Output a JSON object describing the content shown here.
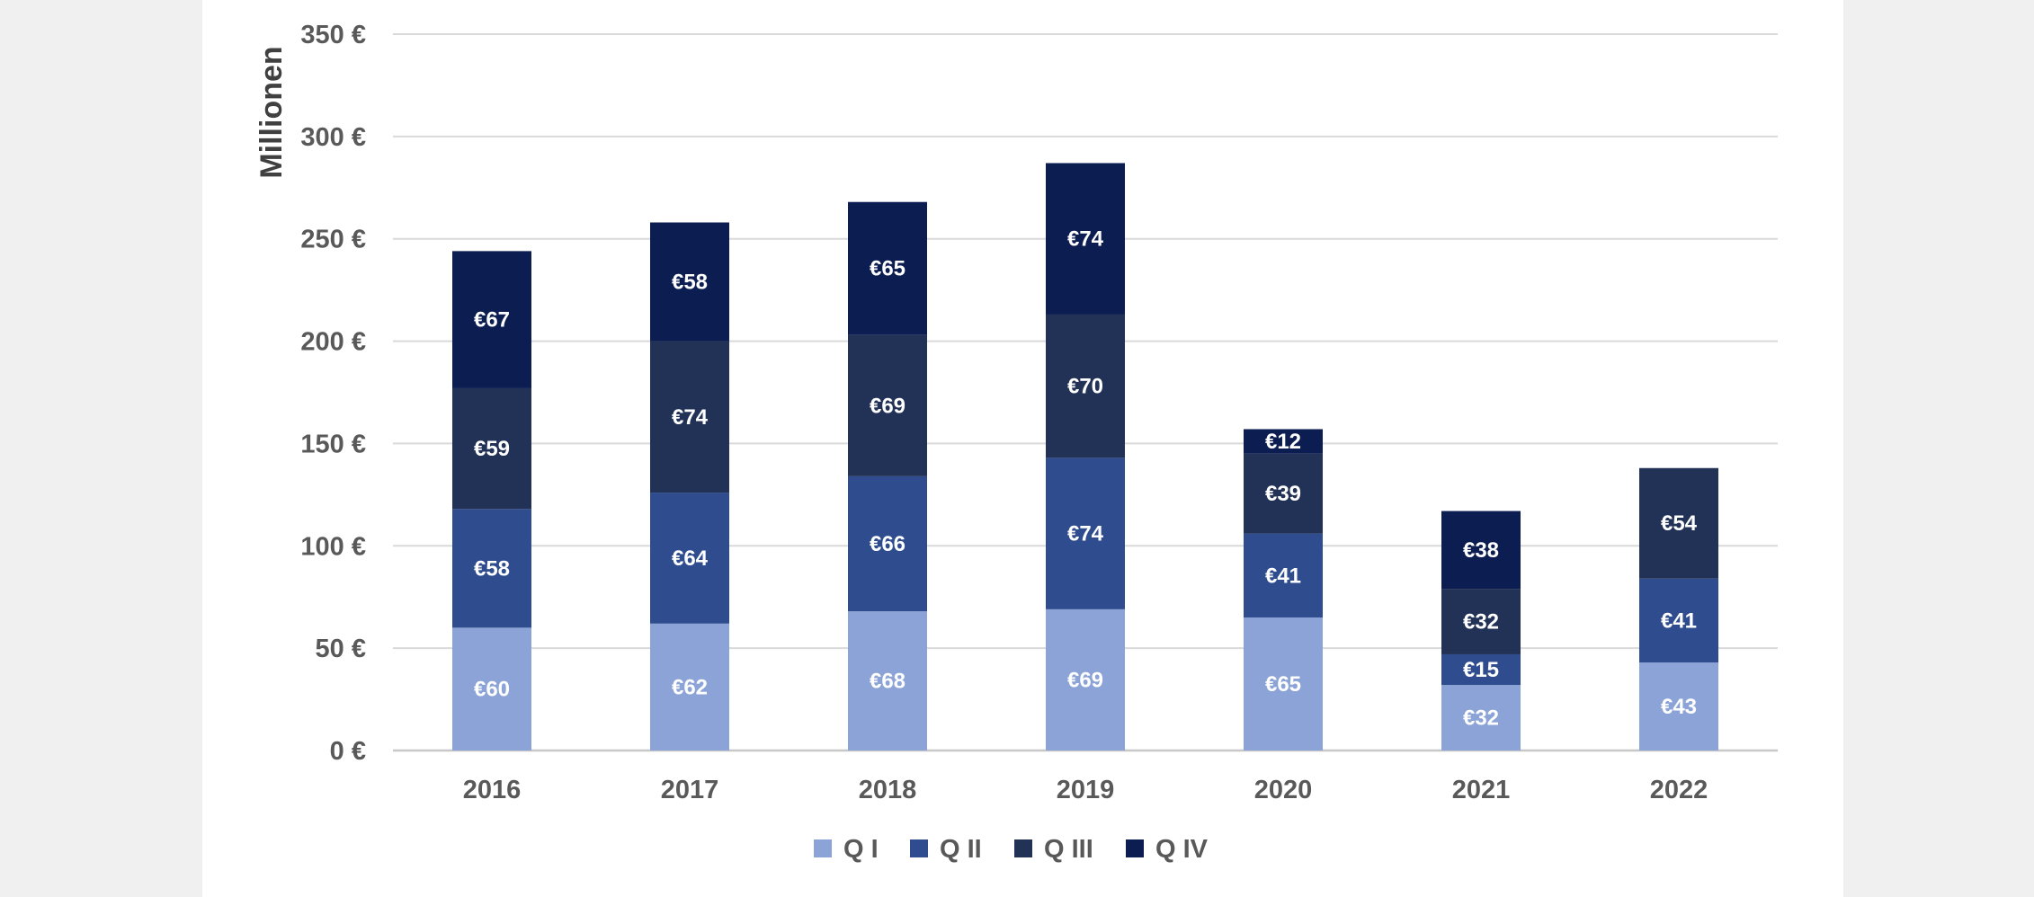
{
  "chart_data": {
    "type": "bar",
    "stacked": true,
    "categories": [
      "2016",
      "2017",
      "2018",
      "2019",
      "2020",
      "2021",
      "2022"
    ],
    "series": [
      {
        "name": "Q I",
        "color": "#8ba3d6",
        "values": [
          60,
          62,
          68,
          69,
          65,
          32,
          43
        ],
        "labels": [
          "€60",
          "€62",
          "€68",
          "€69",
          "€65",
          "€32",
          "€43"
        ]
      },
      {
        "name": "Q II",
        "color": "#2f4d8e",
        "values": [
          58,
          64,
          66,
          74,
          41,
          15,
          41
        ],
        "labels": [
          "€58",
          "€64",
          "€66",
          "€74",
          "€41",
          "€15",
          "€41"
        ]
      },
      {
        "name": "Q III",
        "color": "#223156",
        "values": [
          59,
          74,
          69,
          70,
          39,
          32,
          54
        ],
        "labels": [
          "€59",
          "€74",
          "€69",
          "€70",
          "€39",
          "€32",
          "€54"
        ]
      },
      {
        "name": "Q IV",
        "color": "#0c1d52",
        "values": [
          67,
          58,
          65,
          74,
          12,
          38,
          null
        ],
        "labels": [
          "€67",
          "€58",
          "€65",
          "€74",
          "€12",
          "€38",
          null
        ]
      }
    ],
    "ylabel": "Millionen",
    "ylim": [
      0,
      350
    ],
    "yticks": [
      {
        "value": 0,
        "label": "0 €"
      },
      {
        "value": 50,
        "label": "50 €"
      },
      {
        "value": 100,
        "label": "100 €"
      },
      {
        "value": 150,
        "label": "150 €"
      },
      {
        "value": 200,
        "label": "200 €"
      },
      {
        "value": 250,
        "label": "250 €"
      },
      {
        "value": 300,
        "label": "300 €"
      },
      {
        "value": 350,
        "label": "350 €"
      }
    ],
    "grid": true,
    "legend_position": "bottom"
  }
}
